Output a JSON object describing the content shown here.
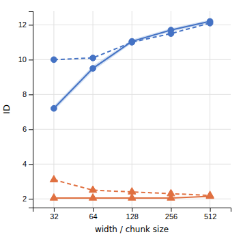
{
  "chart_data": {
    "type": "line",
    "x": [
      32,
      64,
      128,
      256,
      512
    ],
    "xlabel": "width / chunk size",
    "ylabel": "ID",
    "log": "x",
    "xlim": [
      22,
      740
    ],
    "xticks": [
      32,
      64,
      128,
      256,
      512
    ],
    "ylim": [
      1.5,
      12.8
    ],
    "yticks": [
      2,
      4,
      6,
      8,
      10,
      12
    ],
    "grid": true,
    "series": [
      {
        "type": "area",
        "color": "#aac4e8",
        "lower": [
          7.05,
          9.35,
          10.95,
          11.6,
          12.1
        ],
        "upper": [
          7.35,
          9.65,
          11.15,
          11.8,
          12.3
        ]
      },
      {
        "type": "line",
        "color": "#4472C4",
        "marker": "circle",
        "line_style": "solid",
        "values": [
          7.2,
          9.5,
          11.05,
          11.7,
          12.2
        ]
      },
      {
        "type": "line",
        "color": "#4472C4",
        "marker": "circle",
        "line_style": "dashed",
        "values": [
          10.0,
          10.1,
          11.0,
          11.5,
          12.1
        ]
      },
      {
        "type": "line",
        "color": "#E07040",
        "marker": "triangle",
        "line_style": "solid",
        "values": [
          2.05,
          2.05,
          2.05,
          2.05,
          2.15
        ]
      },
      {
        "type": "line",
        "color": "#E07040",
        "marker": "triangle",
        "line_style": "dashed",
        "values": [
          3.1,
          2.5,
          2.4,
          2.3,
          2.2
        ]
      }
    ]
  }
}
